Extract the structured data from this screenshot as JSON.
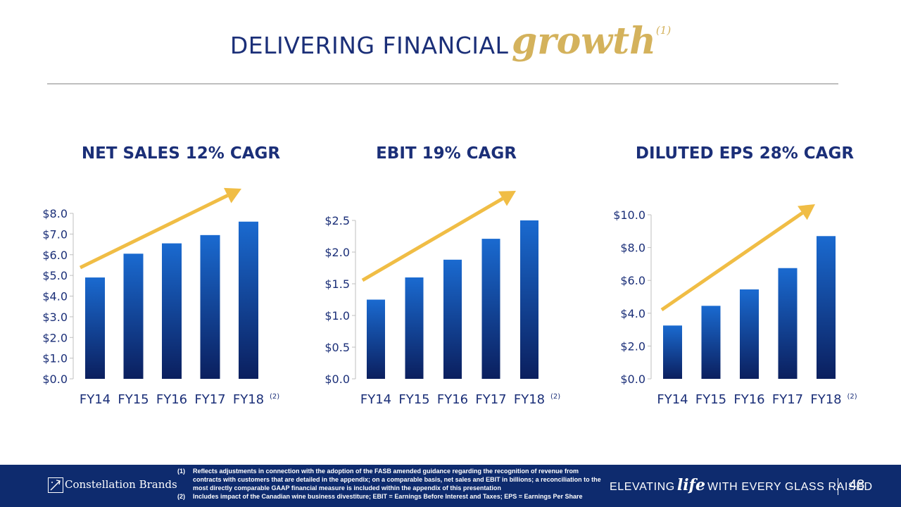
{
  "header": {
    "title_plain": "DELIVERING FINANCIAL",
    "title_accent": "growth",
    "title_note": "(1)"
  },
  "chart_data": [
    {
      "type": "bar",
      "title": "NET SALES 12% CAGR",
      "categories": [
        "FY14",
        "FY15",
        "FY16",
        "FY17",
        "FY18"
      ],
      "category_note": "(2)",
      "values": [
        4.9,
        6.05,
        6.55,
        6.95,
        7.6
      ],
      "ylim": [
        0,
        8
      ],
      "yticks": [
        0,
        1,
        2,
        3,
        4,
        5,
        6,
        7,
        8
      ],
      "ytick_labels": [
        "$0.0",
        "$1.0",
        "$2.0",
        "$3.0",
        "$4.0",
        "$5.0",
        "$6.0",
        "$7.0",
        "$8.0"
      ],
      "trend_arrow": true
    },
    {
      "type": "bar",
      "title": "EBIT 19% CAGR",
      "categories": [
        "FY14",
        "FY15",
        "FY16",
        "FY17",
        "FY18"
      ],
      "category_note": "(2)",
      "values": [
        1.25,
        1.6,
        1.88,
        2.21,
        2.5
      ],
      "ylim": [
        0,
        2.5
      ],
      "yticks": [
        0,
        0.5,
        1,
        1.5,
        2,
        2.5
      ],
      "ytick_labels": [
        "$0.0",
        "$0.5",
        "$1.0",
        "$1.5",
        "$2.0",
        "$2.5"
      ],
      "trend_arrow": true
    },
    {
      "type": "bar",
      "title": "DILUTED EPS 28% CAGR",
      "categories": [
        "FY14",
        "FY15",
        "FY16",
        "FY17",
        "FY18"
      ],
      "category_note": "(2)",
      "values": [
        3.25,
        4.45,
        5.45,
        6.75,
        8.7
      ],
      "ylim": [
        0,
        10
      ],
      "yticks": [
        0,
        2,
        4,
        6,
        8,
        10
      ],
      "ytick_labels": [
        "$0.0",
        "$2.0",
        "$4.0",
        "$6.0",
        "$8.0",
        "$10.0"
      ],
      "trend_arrow": true
    }
  ],
  "footer": {
    "brand": "Constellation Brands",
    "notes": [
      {
        "num": "(1)",
        "text": "Reflects adjustments in connection with the adoption of the FASB amended guidance regarding the recognition of revenue from contracts with customers that are detailed in the appendix; on a comparable basis, net sales and EBIT in billions; a reconciliation to the most directly comparable GAAP financial measure is included within the appendix of this presentation"
      },
      {
        "num": "(2)",
        "text": "Includes impact of the Canadian wine business divestiture; EBIT = Earnings Before Interest and Taxes; EPS = Earnings Per Share"
      }
    ],
    "tagline_pre": "ELEVATING",
    "tagline_life": "life",
    "tagline_post": "WITH EVERY GLASS RAISED",
    "page_number": "48"
  },
  "colors": {
    "navy": "#1b2f78",
    "gold": "#f0bd45",
    "bar_top": "#1a6ad0",
    "bar_bottom": "#0b1f5e",
    "footer_bg": "#0e2b6e"
  }
}
